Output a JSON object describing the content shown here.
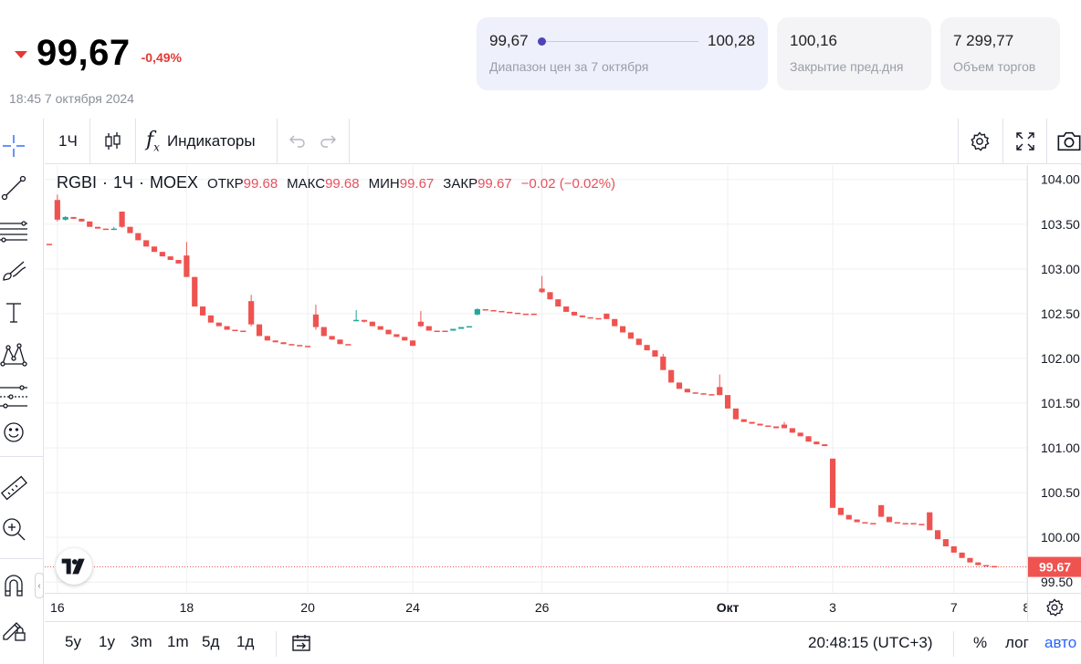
{
  "quote": {
    "price": "99,67",
    "change_pct": "-0,49%",
    "direction": "down",
    "timestamp": "18:45 7 октября 2024",
    "range": {
      "low": "99,67",
      "high": "100,28",
      "label": "Диапазон цен за 7 октября",
      "position_fraction": 0.0
    },
    "prev_close": {
      "value": "100,16",
      "label": "Закрытие пред.дня"
    },
    "volume": {
      "value": "7 299,77",
      "label": "Объем торгов"
    }
  },
  "left_toolbar": {
    "tools": [
      "crosshair-icon",
      "trendline-icon",
      "fib-levels-icon",
      "brush-icon",
      "text-icon",
      "pattern-icon",
      "forecast-icon",
      "emoji-icon",
      "ruler-icon",
      "zoom-in-icon",
      "magnet-icon",
      "lock-pencil-icon"
    ],
    "collapse_label": "‹"
  },
  "toolbar": {
    "interval": "1Ч",
    "indicators_label": "Индикаторы",
    "indicators_icon": "fx-icon",
    "chart_type_icon": "candles-icon",
    "undo_icon": "undo-icon",
    "redo_icon": "redo-icon",
    "settings_icon": "gear-icon",
    "fullscreen_icon": "fullscreen-icon",
    "snapshot_icon": "camera-icon"
  },
  "legend": {
    "symbol": "RGBI",
    "interval": "1Ч",
    "exchange": "MOEX",
    "open_label": "ОТКР",
    "open": "99.68",
    "high_label": "МАКС",
    "high": "99.68",
    "low_label": "МИН",
    "low": "99.67",
    "close_label": "ЗАКР",
    "close": "99.67",
    "change": "−0.02 (−0.02%)"
  },
  "chart_data": {
    "type": "candlestick",
    "symbol": "RGBI",
    "interval": "1Ч",
    "y_ticks": [
      "104.00",
      "103.50",
      "103.00",
      "102.50",
      "102.00",
      "101.50",
      "101.00",
      "100.50",
      "100.00",
      "99.50"
    ],
    "ylim": [
      99.38,
      104.16
    ],
    "x_ticks": [
      "16",
      "18",
      "20",
      "24",
      "26",
      "Окт",
      "3",
      "7",
      "8"
    ],
    "last_price_label": "99.67",
    "last_price": 99.67,
    "colors": {
      "up": "#26a69a",
      "down": "#ef5350",
      "last_line": "#ef5350",
      "grid": "#eef0f3"
    },
    "grid": true,
    "candles": [
      {
        "o": 103.28,
        "h": 103.28,
        "l": 103.28,
        "c": 103.28
      },
      {
        "o": 103.77,
        "h": 103.83,
        "l": 103.53,
        "c": 103.55
      },
      {
        "o": 103.55,
        "h": 103.59,
        "l": 103.54,
        "c": 103.58
      },
      {
        "o": 103.58,
        "h": 103.58,
        "l": 103.56,
        "c": 103.56
      },
      {
        "o": 103.56,
        "h": 103.56,
        "l": 103.53,
        "c": 103.53
      },
      {
        "o": 103.53,
        "h": 103.53,
        "l": 103.47,
        "c": 103.47
      },
      {
        "o": 103.47,
        "h": 103.47,
        "l": 103.45,
        "c": 103.45
      },
      {
        "o": 103.45,
        "h": 103.45,
        "l": 103.44,
        "c": 103.44
      },
      {
        "o": 103.44,
        "h": 103.47,
        "l": 103.44,
        "c": 103.45
      },
      {
        "o": 103.64,
        "h": 103.64,
        "l": 103.46,
        "c": 103.47
      },
      {
        "o": 103.47,
        "h": 103.47,
        "l": 103.4,
        "c": 103.4
      },
      {
        "o": 103.4,
        "h": 103.4,
        "l": 103.32,
        "c": 103.32
      },
      {
        "o": 103.32,
        "h": 103.32,
        "l": 103.25,
        "c": 103.25
      },
      {
        "o": 103.25,
        "h": 103.25,
        "l": 103.19,
        "c": 103.19
      },
      {
        "o": 103.19,
        "h": 103.19,
        "l": 103.14,
        "c": 103.14
      },
      {
        "o": 103.14,
        "h": 103.14,
        "l": 103.1,
        "c": 103.1
      },
      {
        "o": 103.1,
        "h": 103.1,
        "l": 103.06,
        "c": 103.06
      },
      {
        "o": 103.15,
        "h": 103.3,
        "l": 102.91,
        "c": 102.91
      },
      {
        "o": 102.91,
        "h": 102.91,
        "l": 102.58,
        "c": 102.58
      },
      {
        "o": 102.58,
        "h": 102.58,
        "l": 102.48,
        "c": 102.48
      },
      {
        "o": 102.48,
        "h": 102.48,
        "l": 102.4,
        "c": 102.4
      },
      {
        "o": 102.4,
        "h": 102.4,
        "l": 102.36,
        "c": 102.36
      },
      {
        "o": 102.36,
        "h": 102.36,
        "l": 102.32,
        "c": 102.32
      },
      {
        "o": 102.32,
        "h": 102.32,
        "l": 102.31,
        "c": 102.31
      },
      {
        "o": 102.31,
        "h": 102.31,
        "l": 102.31,
        "c": 102.31
      },
      {
        "o": 102.64,
        "h": 102.71,
        "l": 102.36,
        "c": 102.38
      },
      {
        "o": 102.38,
        "h": 102.38,
        "l": 102.25,
        "c": 102.25
      },
      {
        "o": 102.25,
        "h": 102.25,
        "l": 102.2,
        "c": 102.2
      },
      {
        "o": 102.2,
        "h": 102.2,
        "l": 102.18,
        "c": 102.18
      },
      {
        "o": 102.18,
        "h": 102.18,
        "l": 102.16,
        "c": 102.16
      },
      {
        "o": 102.16,
        "h": 102.16,
        "l": 102.15,
        "c": 102.15
      },
      {
        "o": 102.15,
        "h": 102.15,
        "l": 102.14,
        "c": 102.14
      },
      {
        "o": 102.14,
        "h": 102.14,
        "l": 102.14,
        "c": 102.14
      },
      {
        "o": 102.49,
        "h": 102.6,
        "l": 102.32,
        "c": 102.35
      },
      {
        "o": 102.35,
        "h": 102.35,
        "l": 102.25,
        "c": 102.25
      },
      {
        "o": 102.25,
        "h": 102.25,
        "l": 102.21,
        "c": 102.21
      },
      {
        "o": 102.21,
        "h": 102.21,
        "l": 102.16,
        "c": 102.16
      },
      {
        "o": 102.16,
        "h": 102.16,
        "l": 102.16,
        "c": 102.16
      },
      {
        "o": 102.42,
        "h": 102.54,
        "l": 102.42,
        "c": 102.43
      },
      {
        "o": 102.43,
        "h": 102.43,
        "l": 102.4,
        "c": 102.41
      },
      {
        "o": 102.41,
        "h": 102.41,
        "l": 102.36,
        "c": 102.36
      },
      {
        "o": 102.36,
        "h": 102.36,
        "l": 102.32,
        "c": 102.32
      },
      {
        "o": 102.32,
        "h": 102.32,
        "l": 102.27,
        "c": 102.27
      },
      {
        "o": 102.27,
        "h": 102.27,
        "l": 102.24,
        "c": 102.24
      },
      {
        "o": 102.24,
        "h": 102.24,
        "l": 102.2,
        "c": 102.2
      },
      {
        "o": 102.2,
        "h": 102.2,
        "l": 102.14,
        "c": 102.14
      },
      {
        "o": 102.41,
        "h": 102.53,
        "l": 102.35,
        "c": 102.36
      },
      {
        "o": 102.36,
        "h": 102.36,
        "l": 102.31,
        "c": 102.31
      },
      {
        "o": 102.31,
        "h": 102.31,
        "l": 102.31,
        "c": 102.31
      },
      {
        "o": 102.31,
        "h": 102.31,
        "l": 102.31,
        "c": 102.31
      },
      {
        "o": 102.31,
        "h": 102.33,
        "l": 102.31,
        "c": 102.33
      },
      {
        "o": 102.33,
        "h": 102.35,
        "l": 102.33,
        "c": 102.35
      },
      {
        "o": 102.35,
        "h": 102.36,
        "l": 102.35,
        "c": 102.36
      },
      {
        "o": 102.49,
        "h": 102.56,
        "l": 102.48,
        "c": 102.55
      },
      {
        "o": 102.55,
        "h": 102.55,
        "l": 102.54,
        "c": 102.54
      },
      {
        "o": 102.54,
        "h": 102.54,
        "l": 102.53,
        "c": 102.53
      },
      {
        "o": 102.53,
        "h": 102.53,
        "l": 102.52,
        "c": 102.52
      },
      {
        "o": 102.52,
        "h": 102.52,
        "l": 102.51,
        "c": 102.51
      },
      {
        "o": 102.51,
        "h": 102.51,
        "l": 102.5,
        "c": 102.5
      },
      {
        "o": 102.5,
        "h": 102.5,
        "l": 102.5,
        "c": 102.5
      },
      {
        "o": 102.5,
        "h": 102.5,
        "l": 102.49,
        "c": 102.49
      },
      {
        "o": 102.78,
        "h": 102.92,
        "l": 102.73,
        "c": 102.74
      },
      {
        "o": 102.74,
        "h": 102.74,
        "l": 102.66,
        "c": 102.66
      },
      {
        "o": 102.66,
        "h": 102.66,
        "l": 102.58,
        "c": 102.58
      },
      {
        "o": 102.58,
        "h": 102.58,
        "l": 102.52,
        "c": 102.52
      },
      {
        "o": 102.52,
        "h": 102.52,
        "l": 102.48,
        "c": 102.48
      },
      {
        "o": 102.48,
        "h": 102.48,
        "l": 102.46,
        "c": 102.46
      },
      {
        "o": 102.46,
        "h": 102.46,
        "l": 102.45,
        "c": 102.45
      },
      {
        "o": 102.45,
        "h": 102.45,
        "l": 102.45,
        "c": 102.45
      },
      {
        "o": 102.5,
        "h": 102.5,
        "l": 102.44,
        "c": 102.44
      },
      {
        "o": 102.44,
        "h": 102.44,
        "l": 102.36,
        "c": 102.36
      },
      {
        "o": 102.36,
        "h": 102.36,
        "l": 102.29,
        "c": 102.29
      },
      {
        "o": 102.29,
        "h": 102.29,
        "l": 102.22,
        "c": 102.22
      },
      {
        "o": 102.22,
        "h": 102.22,
        "l": 102.15,
        "c": 102.15
      },
      {
        "o": 102.15,
        "h": 102.15,
        "l": 102.09,
        "c": 102.09
      },
      {
        "o": 102.09,
        "h": 102.09,
        "l": 102.02,
        "c": 102.02
      },
      {
        "o": 102.02,
        "h": 102.05,
        "l": 101.87,
        "c": 101.87
      },
      {
        "o": 101.87,
        "h": 101.87,
        "l": 101.73,
        "c": 101.73
      },
      {
        "o": 101.73,
        "h": 101.73,
        "l": 101.66,
        "c": 101.66
      },
      {
        "o": 101.66,
        "h": 101.66,
        "l": 101.62,
        "c": 101.62
      },
      {
        "o": 101.62,
        "h": 101.62,
        "l": 101.61,
        "c": 101.61
      },
      {
        "o": 101.61,
        "h": 101.61,
        "l": 101.6,
        "c": 101.6
      },
      {
        "o": 101.6,
        "h": 101.6,
        "l": 101.59,
        "c": 101.59
      },
      {
        "o": 101.68,
        "h": 101.82,
        "l": 101.59,
        "c": 101.59
      },
      {
        "o": 101.59,
        "h": 101.59,
        "l": 101.44,
        "c": 101.44
      },
      {
        "o": 101.44,
        "h": 101.44,
        "l": 101.32,
        "c": 101.32
      },
      {
        "o": 101.32,
        "h": 101.32,
        "l": 101.29,
        "c": 101.29
      },
      {
        "o": 101.29,
        "h": 101.29,
        "l": 101.27,
        "c": 101.27
      },
      {
        "o": 101.27,
        "h": 101.27,
        "l": 101.25,
        "c": 101.25
      },
      {
        "o": 101.25,
        "h": 101.25,
        "l": 101.24,
        "c": 101.24
      },
      {
        "o": 101.24,
        "h": 101.24,
        "l": 101.22,
        "c": 101.22
      },
      {
        "o": 101.26,
        "h": 101.29,
        "l": 101.22,
        "c": 101.22
      },
      {
        "o": 101.22,
        "h": 101.22,
        "l": 101.17,
        "c": 101.17
      },
      {
        "o": 101.17,
        "h": 101.17,
        "l": 101.13,
        "c": 101.13
      },
      {
        "o": 101.13,
        "h": 101.13,
        "l": 101.07,
        "c": 101.07
      },
      {
        "o": 101.07,
        "h": 101.07,
        "l": 101.04,
        "c": 101.04
      },
      {
        "o": 101.04,
        "h": 101.04,
        "l": 101.02,
        "c": 101.02
      },
      {
        "o": 100.88,
        "h": 100.88,
        "l": 100.33,
        "c": 100.33
      },
      {
        "o": 100.33,
        "h": 100.33,
        "l": 100.25,
        "c": 100.25
      },
      {
        "o": 100.25,
        "h": 100.25,
        "l": 100.2,
        "c": 100.2
      },
      {
        "o": 100.2,
        "h": 100.2,
        "l": 100.17,
        "c": 100.17
      },
      {
        "o": 100.17,
        "h": 100.17,
        "l": 100.16,
        "c": 100.16
      },
      {
        "o": 100.16,
        "h": 100.16,
        "l": 100.16,
        "c": 100.16
      },
      {
        "o": 100.36,
        "h": 100.36,
        "l": 100.23,
        "c": 100.23
      },
      {
        "o": 100.23,
        "h": 100.23,
        "l": 100.17,
        "c": 100.17
      },
      {
        "o": 100.17,
        "h": 100.17,
        "l": 100.16,
        "c": 100.16
      },
      {
        "o": 100.16,
        "h": 100.16,
        "l": 100.16,
        "c": 100.16
      },
      {
        "o": 100.16,
        "h": 100.16,
        "l": 100.15,
        "c": 100.15
      },
      {
        "o": 100.15,
        "h": 100.15,
        "l": 100.15,
        "c": 100.15
      },
      {
        "o": 100.28,
        "h": 100.28,
        "l": 100.08,
        "c": 100.08
      },
      {
        "o": 100.08,
        "h": 100.08,
        "l": 99.98,
        "c": 99.98
      },
      {
        "o": 99.98,
        "h": 99.98,
        "l": 99.9,
        "c": 99.9
      },
      {
        "o": 99.9,
        "h": 99.9,
        "l": 99.83,
        "c": 99.83
      },
      {
        "o": 99.83,
        "h": 99.83,
        "l": 99.77,
        "c": 99.77
      },
      {
        "o": 99.77,
        "h": 99.77,
        "l": 99.72,
        "c": 99.72
      },
      {
        "o": 99.72,
        "h": 99.72,
        "l": 99.69,
        "c": 99.69
      },
      {
        "o": 99.69,
        "h": 99.69,
        "l": 99.68,
        "c": 99.68
      },
      {
        "o": 99.68,
        "h": 99.68,
        "l": 99.67,
        "c": 99.67
      }
    ],
    "x_tick_candle_index": [
      1,
      17,
      32,
      45,
      61,
      84,
      97,
      112,
      121
    ]
  },
  "bottom_bar": {
    "ranges": [
      "5y",
      "1y",
      "3m",
      "1m",
      "5д",
      "1д"
    ],
    "goto_date_icon": "calendar-icon",
    "clock": "20:48:15 (UTC+3)",
    "percent": "%",
    "log": "лог",
    "auto": "авто"
  }
}
